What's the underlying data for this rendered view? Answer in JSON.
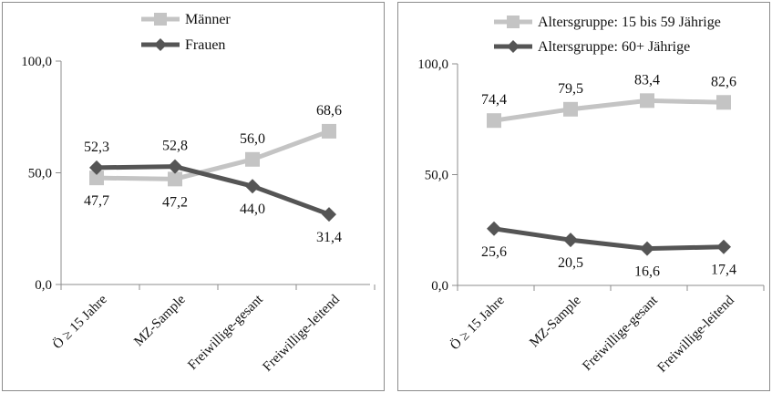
{
  "colors": {
    "light": "#c4c4c4",
    "dark": "#555555",
    "axis": "#8c8c8c",
    "text": "#111111"
  },
  "chart_data": [
    {
      "type": "line",
      "categories": [
        "Ö ≥ 15 Jahre",
        "MZ-Sample",
        "Freiwillige-gesant",
        "Freiwillige-leitend"
      ],
      "ylim": [
        0,
        100
      ],
      "yticks": [
        "0,0",
        "50,0",
        "100,0"
      ],
      "grid": false,
      "legend": "top",
      "series": [
        {
          "name": "Männer",
          "values": [
            47.7,
            47.2,
            56.0,
            68.6
          ],
          "labels": [
            "47,7",
            "47,2",
            "56,0",
            "68,6"
          ],
          "label_pos": [
            "below",
            "below",
            "above",
            "above"
          ],
          "marker": "square",
          "color": "#c4c4c4"
        },
        {
          "name": "Frauen",
          "values": [
            52.3,
            52.8,
            44.0,
            31.4
          ],
          "labels": [
            "52,3",
            "52,8",
            "44,0",
            "31,4"
          ],
          "label_pos": [
            "above",
            "above",
            "below",
            "below"
          ],
          "marker": "diamond",
          "color": "#555555"
        }
      ]
    },
    {
      "type": "line",
      "categories": [
        "Ö ≥ 15 Jahre",
        "MZ-Sample",
        "Freiwillige-gesant",
        "Freiwillige-leitend"
      ],
      "ylim": [
        0,
        100
      ],
      "yticks": [
        "0,0",
        "50,0",
        "100,0"
      ],
      "grid": false,
      "legend": "top",
      "series": [
        {
          "name": "Altersgruppe: 15 bis 59 Jährige",
          "values": [
            74.4,
            79.5,
            83.4,
            82.6
          ],
          "labels": [
            "74,4",
            "79,5",
            "83,4",
            "82,6"
          ],
          "label_pos": [
            "above",
            "above",
            "above",
            "above"
          ],
          "marker": "square",
          "color": "#c4c4c4"
        },
        {
          "name": "Altersgruppe: 60+ Jährige",
          "values": [
            25.6,
            20.5,
            16.6,
            17.4
          ],
          "labels": [
            "25,6",
            "20,5",
            "16,6",
            "17,4"
          ],
          "label_pos": [
            "below",
            "below",
            "below",
            "below"
          ],
          "marker": "diamond",
          "color": "#555555"
        }
      ]
    }
  ]
}
